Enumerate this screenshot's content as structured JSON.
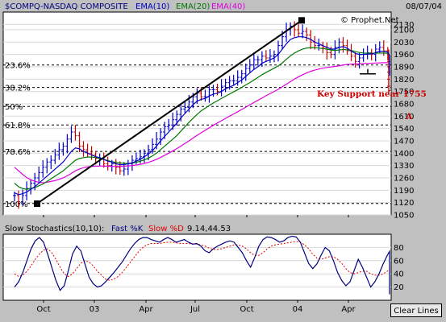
{
  "chart_data": [
    {
      "type": "candlestick",
      "title": "$COMPQ-NASDAQ COMPOSITE",
      "date": "08/07/04",
      "watermark": "© Prophet.Net",
      "legend": [
        {
          "name": "EMA(10)",
          "color": "#0000c8"
        },
        {
          "name": "EMA(20)",
          "color": "#007800"
        },
        {
          "name": "EMA(40)",
          "color": "#e000e0"
        }
      ],
      "ylim": [
        1050,
        2200
      ],
      "yticks": [
        "2130",
        "2100",
        "2030",
        "1960",
        "1890",
        "1820",
        "1750",
        "1680",
        "1610",
        "1540",
        "1470",
        "1400",
        "1330",
        "1260",
        "1190",
        "1120",
        "1050"
      ],
      "xticks": [
        "Oct",
        "03",
        "Apr",
        "Jul",
        "Oct",
        "04",
        "Apr"
      ],
      "fib_levels": [
        {
          "label": "23.6%",
          "value": 1900
        },
        {
          "label": "38.2%",
          "value": 1773
        },
        {
          "label": "50%",
          "value": 1665
        },
        {
          "label": "61.8%",
          "value": 1560
        },
        {
          "label": "78.6%",
          "value": 1410
        },
        {
          "label": "100%",
          "value": 1115
        }
      ],
      "trendline": [
        {
          "x": "Oct 02",
          "y": 1114
        },
        {
          "x": "Jan 04",
          "y": 2153
        }
      ],
      "annotations": [
        {
          "text": "Key Support near 1755",
          "color": "#c80000"
        },
        {
          "text": "A",
          "color": "#c80000"
        }
      ],
      "close": [
        1160,
        1125,
        1160,
        1200,
        1230,
        1260,
        1290,
        1320,
        1350,
        1360,
        1390,
        1420,
        1440,
        1480,
        1520,
        1500,
        1440,
        1420,
        1400,
        1390,
        1370,
        1370,
        1340,
        1330,
        1340,
        1320,
        1300,
        1310,
        1340,
        1360,
        1370,
        1380,
        1400,
        1420,
        1450,
        1480,
        1520,
        1550,
        1560,
        1590,
        1620,
        1650,
        1660,
        1690,
        1720,
        1740,
        1720,
        1720,
        1760,
        1760,
        1750,
        1780,
        1800,
        1810,
        1810,
        1830,
        1850,
        1880,
        1900,
        1930,
        1930,
        1950,
        1940,
        1950,
        1960,
        2010,
        2060,
        2100,
        2120,
        2100,
        2080,
        2090,
        2070,
        2030,
        2010,
        2010,
        2000,
        1970,
        1960,
        2000,
        2030,
        2010,
        1980,
        1950,
        1920,
        1940,
        1960,
        1970,
        1960,
        1990,
        2000,
        1980,
        1960,
        1920,
        1890,
        1860,
        1820,
        1780,
        1755
      ],
      "ema10": [
        1175,
        1165,
        1170,
        1180,
        1195,
        1210,
        1230,
        1250,
        1270,
        1290,
        1310,
        1330,
        1350,
        1380,
        1410,
        1430,
        1425,
        1410,
        1400,
        1390,
        1380,
        1375,
        1365,
        1355,
        1350,
        1340,
        1335,
        1335,
        1340,
        1345,
        1355,
        1365,
        1380,
        1395,
        1415,
        1440,
        1470,
        1495,
        1520,
        1545,
        1570,
        1600,
        1625,
        1650,
        1675,
        1695,
        1705,
        1710,
        1725,
        1735,
        1740,
        1750,
        1765,
        1775,
        1785,
        1800,
        1815,
        1835,
        1855,
        1875,
        1890,
        1910,
        1920,
        1930,
        1940,
        1960,
        1990,
        2020,
        2045,
        2055,
        2060,
        2060,
        2055,
        2045,
        2030,
        2020,
        2010,
        2000,
        1990,
        1990,
        2000,
        2005,
        1995,
        1980,
        1965,
        1960,
        1960,
        1962,
        1962,
        1970,
        1978,
        1978,
        1972,
        1958,
        1940,
        1920,
        1895,
        1865,
        1840
      ],
      "ema20": [
        1230,
        1210,
        1200,
        1195,
        1200,
        1205,
        1215,
        1225,
        1240,
        1255,
        1270,
        1285,
        1300,
        1320,
        1340,
        1360,
        1370,
        1375,
        1378,
        1378,
        1375,
        1370,
        1365,
        1358,
        1352,
        1348,
        1345,
        1342,
        1342,
        1344,
        1348,
        1355,
        1362,
        1372,
        1385,
        1400,
        1420,
        1440,
        1460,
        1480,
        1500,
        1525,
        1550,
        1575,
        1598,
        1620,
        1640,
        1655,
        1670,
        1685,
        1697,
        1710,
        1723,
        1735,
        1748,
        1760,
        1773,
        1787,
        1800,
        1815,
        1830,
        1845,
        1858,
        1870,
        1882,
        1895,
        1912,
        1932,
        1952,
        1968,
        1980,
        1990,
        1996,
        1998,
        1998,
        1996,
        1993,
        1990,
        1985,
        1983,
        1985,
        1988,
        1986,
        1982,
        1976,
        1971,
        1968,
        1967,
        1966,
        1967,
        1968,
        1968,
        1966,
        1960,
        1952,
        1942,
        1930,
        1915,
        1898
      ],
      "ema40": [
        1320,
        1300,
        1280,
        1262,
        1250,
        1240,
        1235,
        1232,
        1235,
        1240,
        1245,
        1252,
        1260,
        1272,
        1285,
        1300,
        1310,
        1318,
        1322,
        1325,
        1326,
        1327,
        1327,
        1326,
        1325,
        1325,
        1325,
        1326,
        1328,
        1330,
        1333,
        1337,
        1342,
        1348,
        1356,
        1365,
        1376,
        1388,
        1400,
        1413,
        1426,
        1440,
        1455,
        1470,
        1486,
        1501,
        1516,
        1530,
        1544,
        1558,
        1571,
        1584,
        1597,
        1610,
        1622,
        1635,
        1648,
        1661,
        1674,
        1687,
        1700,
        1713,
        1726,
        1738,
        1750,
        1762,
        1776,
        1791,
        1806,
        1820,
        1833,
        1845,
        1855,
        1864,
        1871,
        1877,
        1882,
        1886,
        1889,
        1892,
        1896,
        1900,
        1903,
        1905,
        1906,
        1907,
        1908,
        1909,
        1910,
        1911,
        1912,
        1913,
        1913,
        1912,
        1910,
        1907,
        1902,
        1896,
        1888
      ]
    },
    {
      "type": "line",
      "title": "Slow Stochastics(10,10):",
      "legend": [
        {
          "name": "Fast %K",
          "color": "#00007e"
        },
        {
          "name": "Slow %D",
          "color": "#e00000"
        }
      ],
      "value_text": "9.14,44.53",
      "ylim": [
        0,
        100
      ],
      "yticks": [
        "80",
        "60",
        "40",
        "20"
      ],
      "fast_k": [
        20,
        28,
        42,
        60,
        78,
        90,
        95,
        88,
        70,
        50,
        30,
        15,
        22,
        45,
        70,
        82,
        75,
        55,
        35,
        25,
        20,
        22,
        28,
        35,
        42,
        50,
        58,
        68,
        78,
        86,
        92,
        95,
        95,
        92,
        90,
        88,
        92,
        95,
        92,
        88,
        90,
        92,
        88,
        85,
        86,
        82,
        75,
        72,
        78,
        82,
        85,
        88,
        90,
        88,
        80,
        72,
        60,
        50,
        65,
        82,
        92,
        96,
        95,
        92,
        88,
        90,
        95,
        97,
        96,
        88,
        72,
        56,
        48,
        55,
        68,
        80,
        75,
        60,
        42,
        30,
        22,
        28,
        45,
        62,
        50,
        35,
        20,
        28,
        40,
        55,
        68,
        74,
        66,
        42,
        22,
        12,
        9
      ],
      "slow_d": [
        40,
        36,
        38,
        44,
        52,
        62,
        70,
        76,
        78,
        72,
        62,
        50,
        40,
        36,
        40,
        48,
        56,
        60,
        58,
        52,
        44,
        38,
        32,
        30,
        32,
        36,
        42,
        50,
        58,
        66,
        74,
        80,
        84,
        86,
        86,
        86,
        87,
        88,
        88,
        87,
        86,
        86,
        86,
        85,
        85,
        84,
        82,
        79,
        77,
        77,
        78,
        80,
        82,
        84,
        84,
        82,
        78,
        72,
        68,
        68,
        72,
        78,
        82,
        84,
        85,
        86,
        87,
        88,
        89,
        88,
        84,
        78,
        70,
        64,
        62,
        64,
        66,
        66,
        62,
        56,
        48,
        42,
        40,
        42,
        44,
        44,
        40,
        38,
        38,
        40,
        44,
        48,
        50,
        48,
        46,
        45,
        44.53
      ]
    }
  ],
  "ui": {
    "clear_lines_label": "Clear Lines"
  }
}
